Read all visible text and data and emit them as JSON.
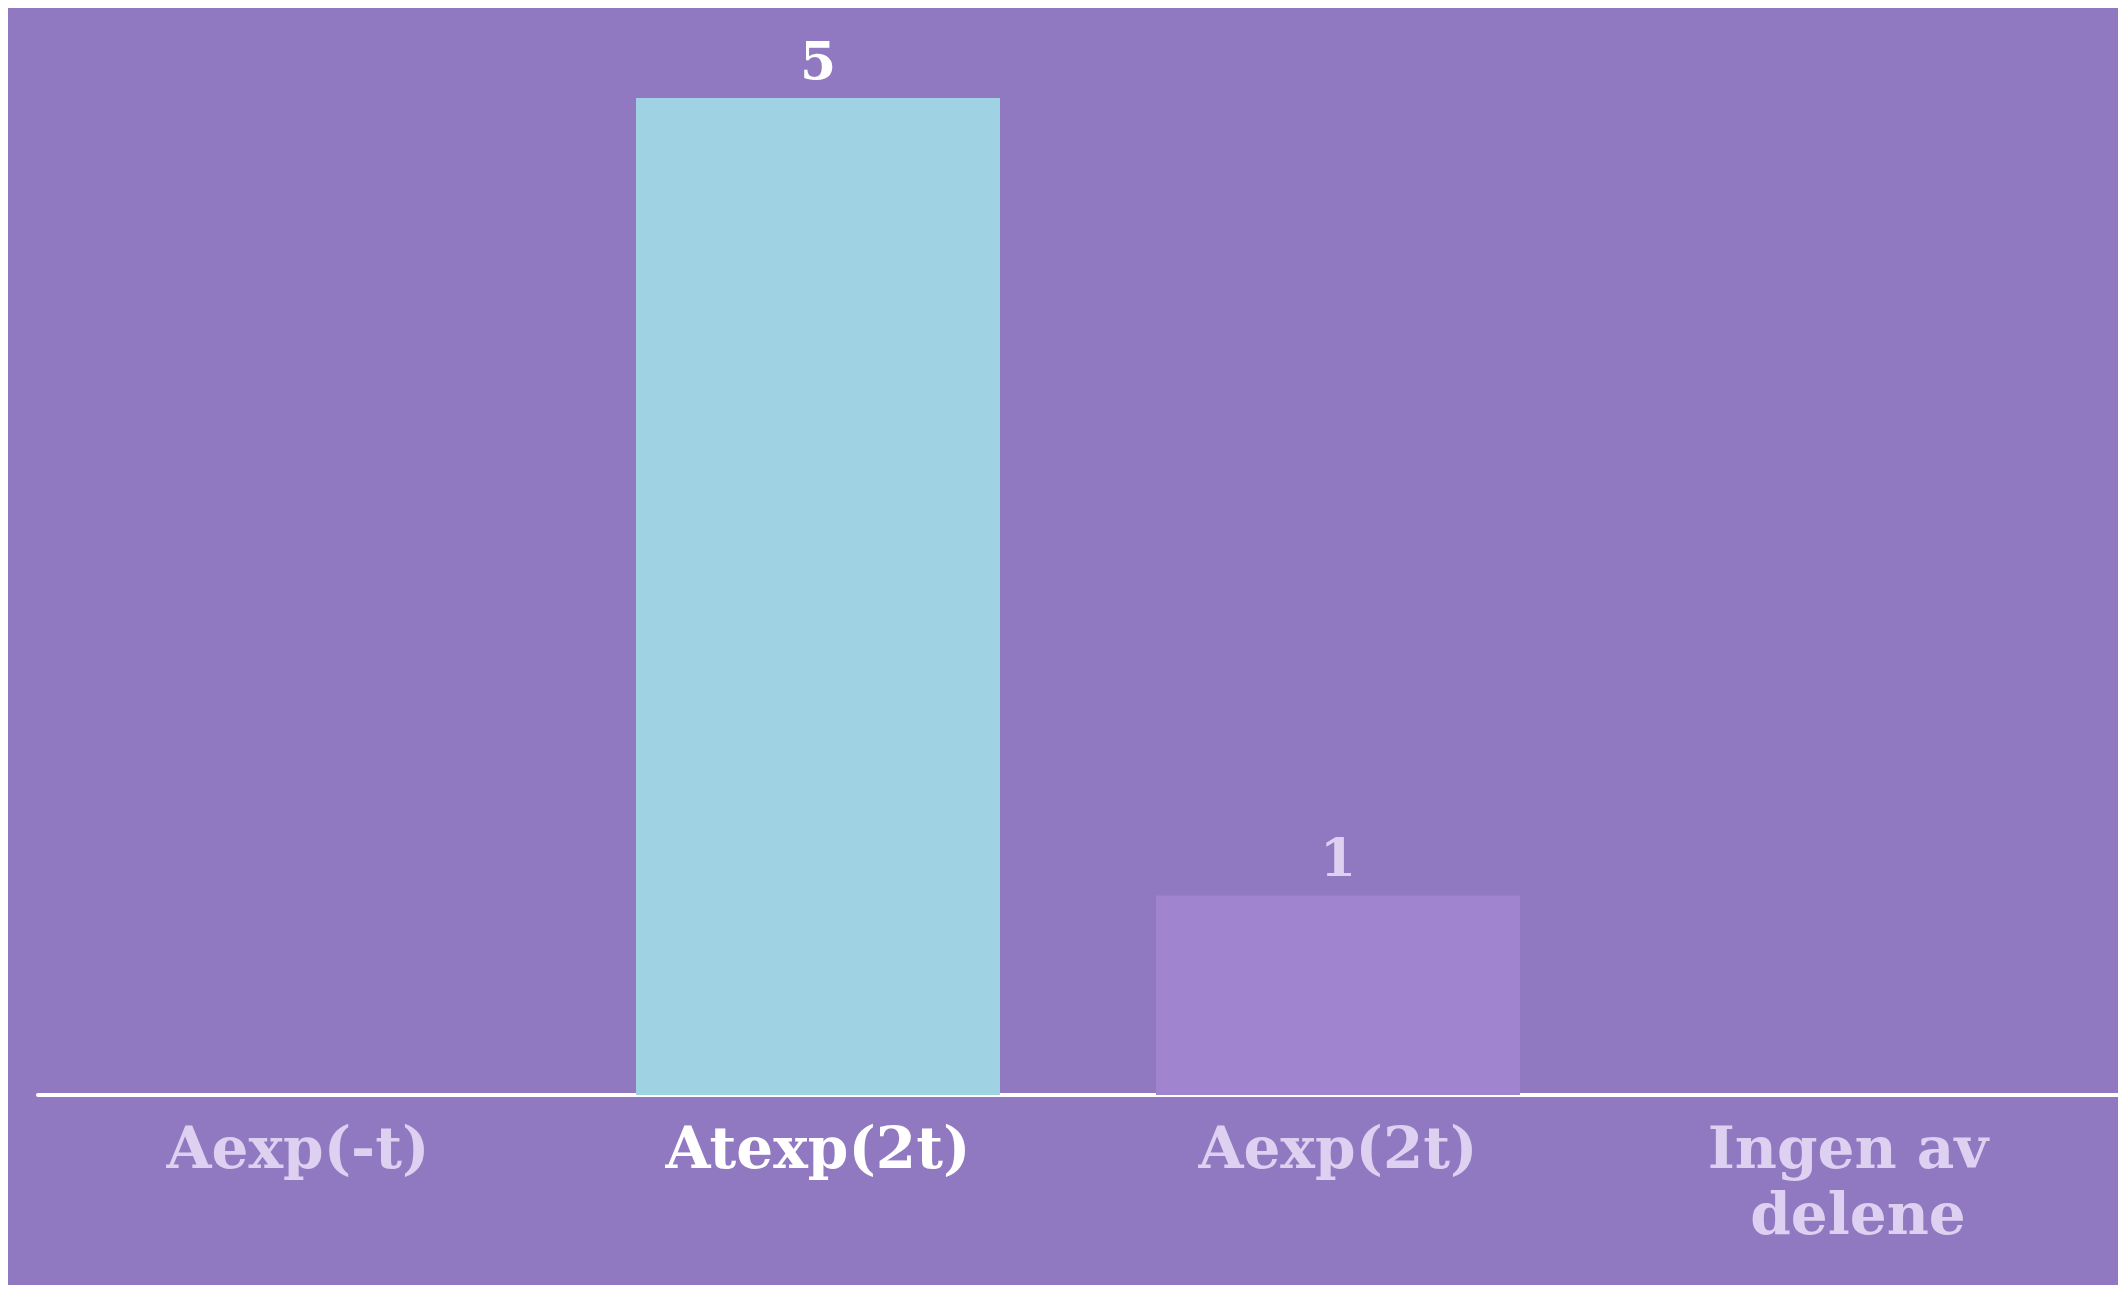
{
  "chart_data": {
    "type": "bar",
    "categories": [
      "Aexp(-t)",
      "Atexp(2t)",
      "Aexp(2t)",
      "Ingen av delene"
    ],
    "values": [
      0,
      5,
      1,
      0
    ],
    "colors": [
      "#a084cf",
      "#9fd3e3",
      "#a084cf",
      "#a084cf"
    ],
    "value_labels": [
      null,
      "5",
      "1",
      null
    ]
  }
}
